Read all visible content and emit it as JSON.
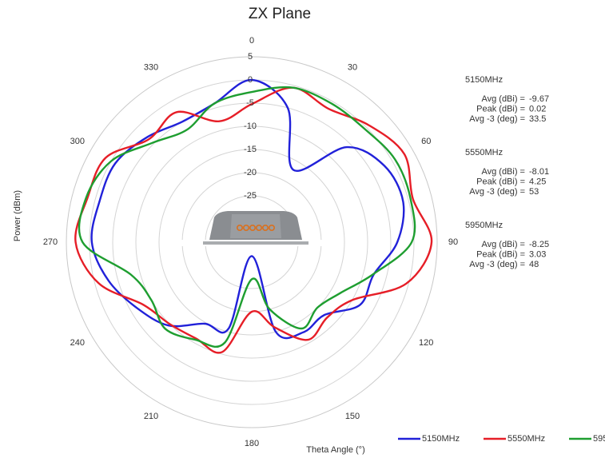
{
  "chart_data": {
    "type": "polar",
    "title": "ZX Plane",
    "y_label": "Power (dBm)",
    "x_label": "Theta Angle (°)",
    "rlim": [
      -35,
      5
    ],
    "rticks": [
      5,
      0,
      -5,
      -10,
      -15,
      -20,
      -25
    ],
    "thetaticks": [
      0,
      30,
      60,
      90,
      120,
      150,
      180,
      210,
      240,
      270,
      300,
      330
    ],
    "theta": [
      0,
      15,
      30,
      45,
      60,
      75,
      90,
      105,
      120,
      135,
      150,
      165,
      180,
      195,
      210,
      225,
      240,
      255,
      270,
      285,
      300,
      315,
      330,
      345
    ],
    "grid": true,
    "legend": "bottom-right",
    "series": [
      {
        "name": "5150MHz",
        "color": "#2121d9",
        "values": [
          0,
          -5,
          -17,
          -6,
          -2,
          -1.2,
          -3.6,
          -7.8,
          -8,
          -12.8,
          -12.6,
          -15,
          -32,
          -15.7,
          -14.7,
          -9.6,
          -6.5,
          -3,
          -0.5,
          -1,
          -1,
          -3,
          -5,
          -4
        ]
      },
      {
        "name": "5550MHz",
        "color": "#e61e27",
        "values": [
          -5.2,
          -0.5,
          -1.8,
          0.7,
          3,
          1,
          3.8,
          -0.5,
          -10,
          -12,
          -10.7,
          -16,
          -20,
          -10.5,
          -11,
          -10,
          -8,
          -0.8,
          3,
          1.7,
          1.4,
          -3.6,
          -2.6,
          -8
        ]
      },
      {
        "name": "5950MHz",
        "color": "#1e9e30",
        "values": [
          -2.6,
          -0.5,
          -0.5,
          -0.5,
          0.7,
          0.5,
          -0.5,
          -8,
          -13,
          -15,
          -13.5,
          -20,
          -27,
          -12.6,
          -10.7,
          -8.6,
          -10,
          -8,
          1.5,
          2,
          0,
          -4.7,
          -7,
          -4
        ]
      }
    ],
    "stats": [
      {
        "name": "5150MHz",
        "rows": [
          {
            "label": "Avg (dBi) =",
            "value": -9.67
          },
          {
            "label": "Peak (dBi) =",
            "value": 0.02
          },
          {
            "label": "Avg -3 (deg) =",
            "value": 33.5
          }
        ]
      },
      {
        "name": "5550MHz",
        "rows": [
          {
            "label": "Avg (dBi) =",
            "value": -8.01
          },
          {
            "label": "Peak (dBi) =",
            "value": 4.25
          },
          {
            "label": "Avg -3 (deg) =",
            "value": 53
          }
        ]
      },
      {
        "name": "5950MHz",
        "rows": [
          {
            "label": "Avg (dBi) =",
            "value": -8.25
          },
          {
            "label": "Peak (dBi) =",
            "value": 3.03
          },
          {
            "label": "Avg -3 (deg) =",
            "value": 48
          }
        ]
      }
    ]
  }
}
